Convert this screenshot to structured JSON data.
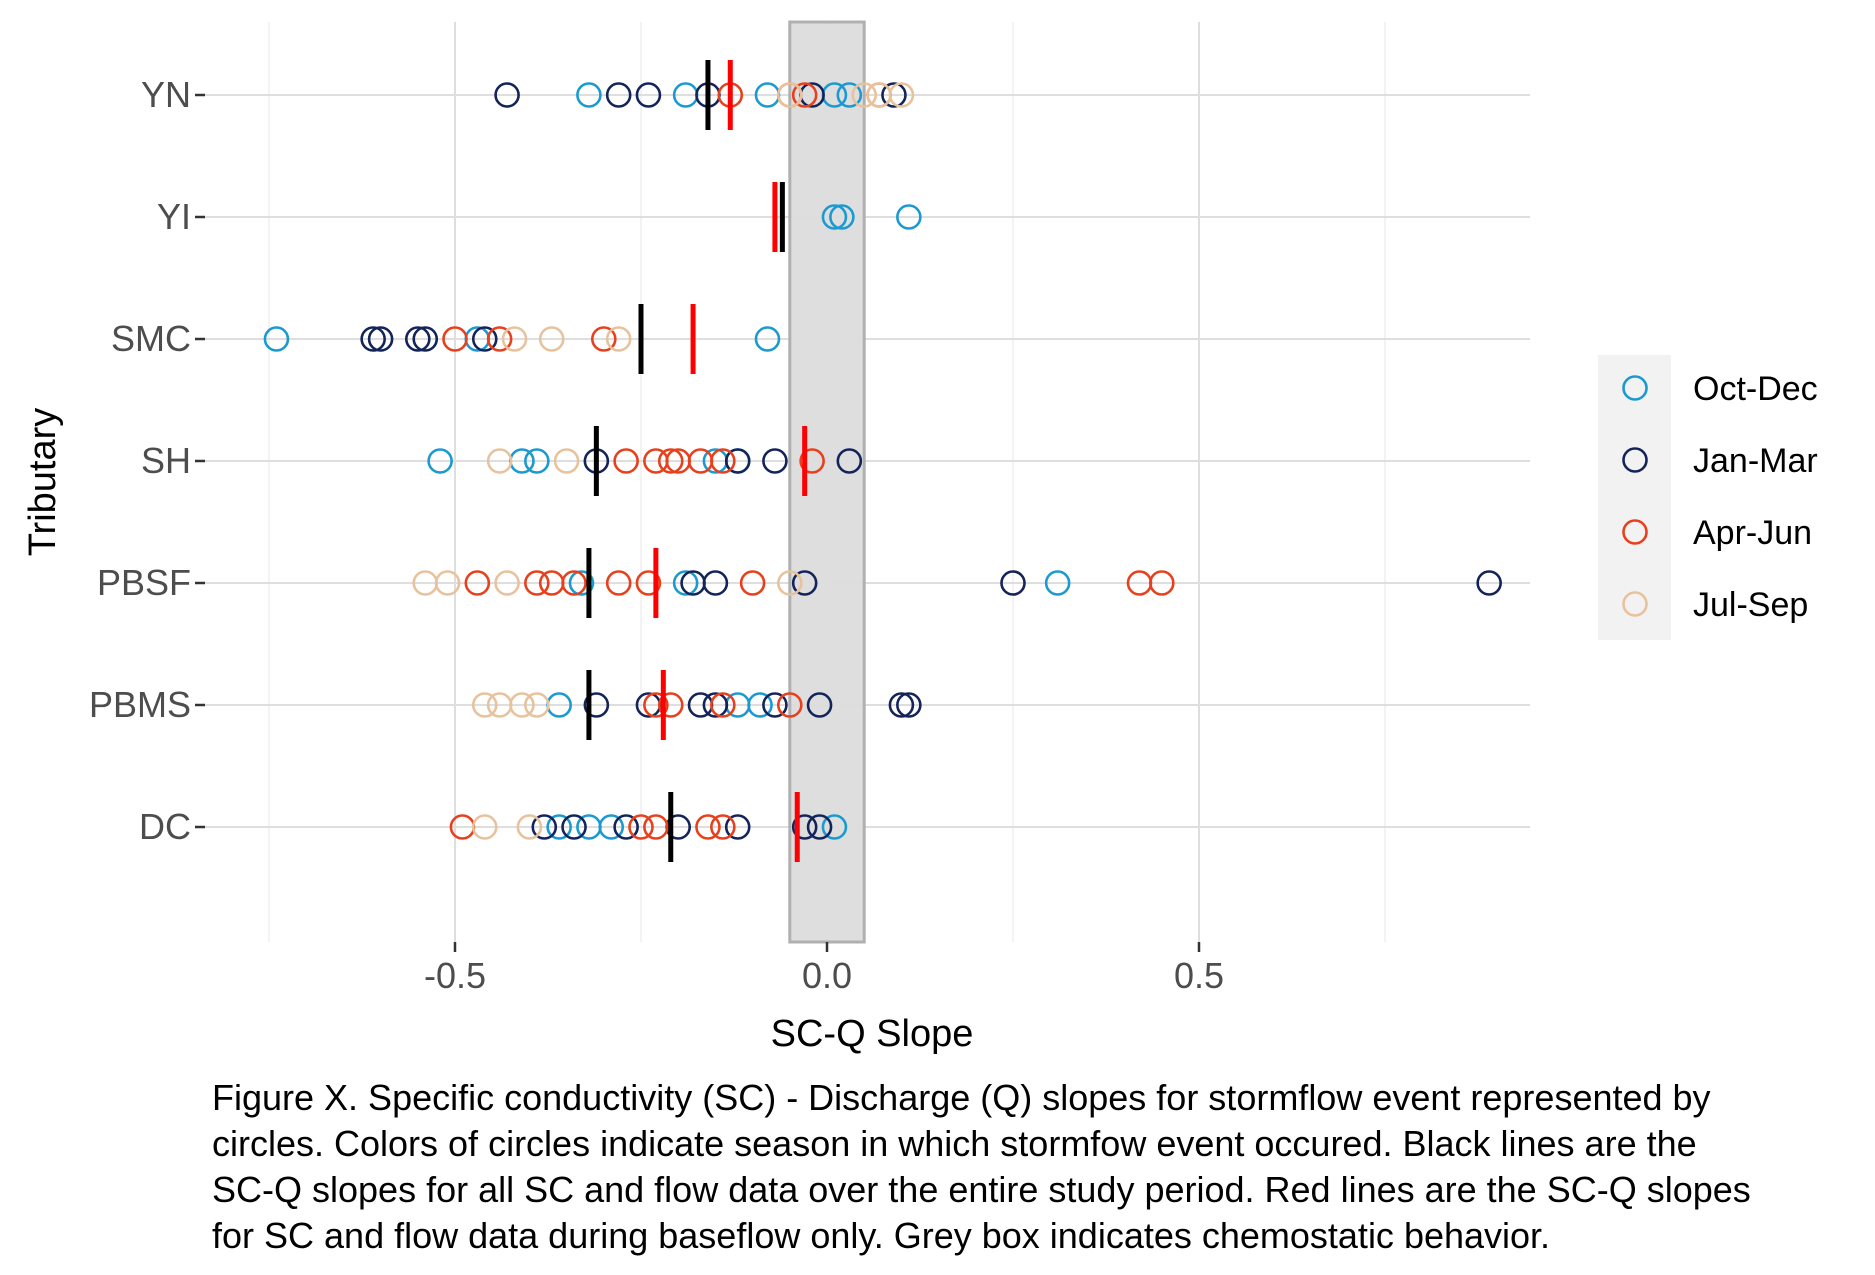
{
  "chart_data": {
    "type": "scatter",
    "xlabel": "SC-Q Slope",
    "ylabel": "Tributary",
    "xlim": [
      -0.93,
      0.95
    ],
    "x_ticks": [
      -0.5,
      0.0,
      0.5
    ],
    "x_tick_labels": [
      "-0.5",
      "0.0",
      "0.5"
    ],
    "categories": [
      "YN",
      "YI",
      "SMC",
      "SH",
      "PBSF",
      "PBMS",
      "DC"
    ],
    "grid": true,
    "legend_position": "right",
    "shaded_band": {
      "x_range": [
        -0.05,
        0.05
      ],
      "color": "#dcdcdc",
      "meaning": "chemostatic"
    },
    "colors": {
      "Oct-Dec": "#1a9ad1",
      "Jan-Mar": "#13245a",
      "Apr-Jun": "#e8401c",
      "Jul-Sep": "#e8c29c",
      "overall_line": "#000000",
      "baseflow_line": "#ff0000"
    },
    "series": [
      {
        "name": "Oct-Dec",
        "points": [
          {
            "y": "YN",
            "x": [
              -0.32,
              -0.19,
              -0.08,
              0.01,
              0.03
            ]
          },
          {
            "y": "YI",
            "x": [
              0.01,
              0.02,
              0.11
            ]
          },
          {
            "y": "SMC",
            "x": [
              -0.74,
              -0.47,
              -0.08
            ]
          },
          {
            "y": "SH",
            "x": [
              -0.52,
              -0.41,
              -0.39,
              -0.15,
              -0.12
            ]
          },
          {
            "y": "PBSF",
            "x": [
              -0.33,
              -0.19,
              0.31
            ]
          },
          {
            "y": "PBMS",
            "x": [
              -0.36,
              -0.12,
              -0.09
            ]
          },
          {
            "y": "DC",
            "x": [
              -0.36,
              -0.32,
              -0.29,
              0.01
            ]
          }
        ]
      },
      {
        "name": "Jan-Mar",
        "points": [
          {
            "y": "YN",
            "x": [
              -0.43,
              -0.28,
              -0.24,
              -0.16,
              -0.02,
              0.09
            ]
          },
          {
            "y": "SMC",
            "x": [
              -0.61,
              -0.6,
              -0.55,
              -0.54,
              -0.46
            ]
          },
          {
            "y": "SH",
            "x": [
              -0.31,
              -0.12,
              -0.07,
              0.03
            ]
          },
          {
            "y": "PBSF",
            "x": [
              -0.18,
              -0.15,
              -0.03,
              0.25,
              0.89
            ]
          },
          {
            "y": "PBMS",
            "x": [
              -0.31,
              -0.24,
              -0.17,
              -0.15,
              -0.07,
              -0.01,
              0.1,
              0.11
            ]
          },
          {
            "y": "DC",
            "x": [
              -0.38,
              -0.34,
              -0.27,
              -0.2,
              -0.12,
              -0.03,
              -0.01
            ]
          }
        ]
      },
      {
        "name": "Apr-Jun",
        "points": [
          {
            "y": "YN",
            "x": [
              -0.13,
              -0.05,
              -0.03,
              0.07
            ]
          },
          {
            "y": "SMC",
            "x": [
              -0.5,
              -0.44,
              -0.3
            ]
          },
          {
            "y": "SH",
            "x": [
              -0.27,
              -0.23,
              -0.21,
              -0.2,
              -0.17,
              -0.14,
              -0.02
            ]
          },
          {
            "y": "PBSF",
            "x": [
              -0.47,
              -0.39,
              -0.37,
              -0.34,
              -0.28,
              -0.24,
              -0.1,
              0.42,
              0.45
            ]
          },
          {
            "y": "PBMS",
            "x": [
              -0.23,
              -0.21,
              -0.14,
              -0.05
            ]
          },
          {
            "y": "DC",
            "x": [
              -0.49,
              -0.25,
              -0.23,
              -0.16,
              -0.14
            ]
          }
        ]
      },
      {
        "name": "Jul-Sep",
        "points": [
          {
            "y": "YN",
            "x": [
              -0.05,
              0.05,
              0.07,
              0.1
            ]
          },
          {
            "y": "SMC",
            "x": [
              -0.42,
              -0.37,
              -0.28
            ]
          },
          {
            "y": "SH",
            "x": [
              -0.44,
              -0.35
            ]
          },
          {
            "y": "PBSF",
            "x": [
              -0.54,
              -0.51,
              -0.43,
              -0.05
            ]
          },
          {
            "y": "PBMS",
            "x": [
              -0.46,
              -0.44,
              -0.41,
              -0.39
            ]
          },
          {
            "y": "DC",
            "x": [
              -0.46,
              -0.4
            ]
          }
        ]
      }
    ],
    "overall_slopes": [
      {
        "y": "YN",
        "x": -0.16
      },
      {
        "y": "YI",
        "x": -0.06
      },
      {
        "y": "SMC",
        "x": -0.25
      },
      {
        "y": "SH",
        "x": -0.31
      },
      {
        "y": "PBSF",
        "x": -0.32
      },
      {
        "y": "PBMS",
        "x": -0.32
      },
      {
        "y": "DC",
        "x": -0.21
      }
    ],
    "baseflow_slopes": [
      {
        "y": "YN",
        "x": -0.13
      },
      {
        "y": "YI",
        "x": -0.07
      },
      {
        "y": "SMC",
        "x": -0.18
      },
      {
        "y": "SH",
        "x": -0.03
      },
      {
        "y": "PBSF",
        "x": -0.23
      },
      {
        "y": "PBMS",
        "x": -0.22
      },
      {
        "y": "DC",
        "x": -0.04
      }
    ]
  },
  "caption": {
    "lines": [
      "Figure X. Specific conductivity (SC) - Discharge (Q) slopes for stormflow event represented by",
      "circles. Colors of circles indicate season in which stormfow event occured. Black lines are the",
      "SC-Q slopes for all SC and flow data over the entire study period. Red lines are the SC-Q slopes",
      "for SC and flow data during baseflow only. Grey box indicates chemostatic behavior."
    ]
  }
}
